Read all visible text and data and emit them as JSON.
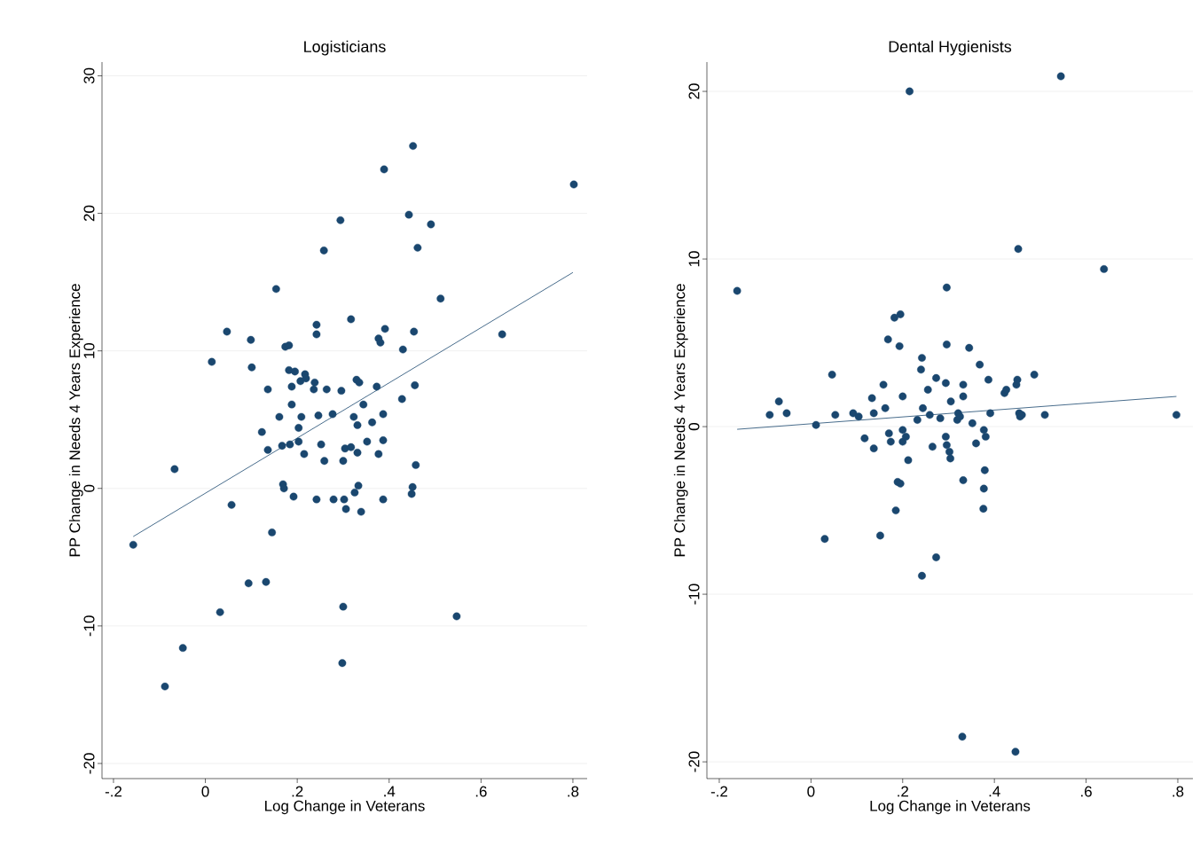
{
  "chart_data": [
    {
      "type": "scatter",
      "title": "Logisticians",
      "xlabel": "Log Change in Veterans",
      "ylabel": "PP Change in Needs 4 Years Experience",
      "xlim": [
        -0.225,
        0.831
      ],
      "ylim": [
        -21.1,
        31.0
      ],
      "xticks": [
        {
          "value": -0.2,
          "label": "-.2"
        },
        0,
        {
          "value": 0.2,
          "label": ".2"
        },
        {
          "value": 0.4,
          "label": ".4"
        },
        {
          "value": 0.6,
          "label": ".6"
        },
        {
          "value": 0.8,
          "label": ".8"
        }
      ],
      "yticks": [
        -20,
        -10,
        0,
        10,
        20,
        30
      ],
      "grid": "y",
      "marker": "circle",
      "series": [
        {
          "color": "#1a476f",
          "x": [
            -0.157,
            -0.088,
            -0.049,
            -0.067,
            0.014,
            0.032,
            0.047,
            0.057,
            0.099,
            0.101,
            0.123,
            0.132,
            0.094,
            0.136,
            0.136,
            0.145,
            0.154,
            0.161,
            0.167,
            0.169,
            0.171,
            0.174,
            0.182,
            0.184,
            0.182,
            0.188,
            0.192,
            0.188,
            0.195,
            0.203,
            0.203,
            0.207,
            0.209,
            0.215,
            0.217,
            0.219,
            0.242,
            0.236,
            0.238,
            0.242,
            0.242,
            0.246,
            0.252,
            0.258,
            0.259,
            0.264,
            0.277,
            0.279,
            0.294,
            0.296,
            0.298,
            0.3,
            0.3,
            0.302,
            0.306,
            0.304,
            0.317,
            0.317,
            0.323,
            0.325,
            0.329,
            0.331,
            0.333,
            0.331,
            0.335,
            0.339,
            0.344,
            0.352,
            0.363,
            0.373,
            0.377,
            0.377,
            0.381,
            0.387,
            0.387,
            0.387,
            0.389,
            0.391,
            0.428,
            0.43,
            0.443,
            0.449,
            0.451,
            0.452,
            0.454,
            0.456,
            0.458,
            0.462,
            0.491,
            0.512,
            0.547,
            0.646,
            0.802
          ],
          "values": [
            -4.1,
            -14.4,
            -11.6,
            1.4,
            9.2,
            -9.0,
            11.4,
            -1.2,
            10.8,
            8.8,
            4.1,
            -6.8,
            -6.9,
            7.2,
            2.8,
            -3.2,
            14.5,
            5.2,
            3.1,
            0.3,
            0.0,
            10.3,
            10.4,
            3.2,
            8.6,
            6.1,
            -0.6,
            7.4,
            8.5,
            4.4,
            3.4,
            7.8,
            5.2,
            2.5,
            8.3,
            8.0,
            -0.8,
            7.2,
            7.7,
            11.2,
            11.9,
            5.3,
            3.2,
            17.3,
            2.0,
            7.2,
            5.4,
            -0.8,
            19.5,
            7.1,
            -12.7,
            -8.6,
            2.0,
            -0.8,
            -1.5,
            2.9,
            12.3,
            3.0,
            5.2,
            -0.3,
            7.9,
            2.6,
            0.2,
            4.6,
            7.7,
            -1.7,
            6.1,
            3.4,
            4.8,
            7.4,
            2.5,
            10.9,
            10.6,
            -0.8,
            3.5,
            5.4,
            23.2,
            11.6,
            6.5,
            10.1,
            19.9,
            -0.4,
            0.1,
            24.9,
            11.4,
            7.5,
            1.7,
            17.5,
            19.2,
            13.8,
            -9.3,
            11.2,
            22.1
          ]
        },
        {
          "type": "line",
          "color": "#1a476f",
          "marker": "none",
          "x": [
            -0.157,
            0.8
          ],
          "values": [
            -3.5,
            15.7
          ]
        }
      ]
    },
    {
      "type": "scatter",
      "title": "Dental Hygienists",
      "xlabel": "Log Change in Veterans",
      "ylabel": "PP Change in Needs 4 Years Experience",
      "xlim": [
        -0.227,
        0.833
      ],
      "ylim": [
        -21.0,
        21.75
      ],
      "xticks": [
        {
          "value": -0.2,
          "label": "-.2"
        },
        0,
        {
          "value": 0.2,
          "label": ".2"
        },
        {
          "value": 0.4,
          "label": ".4"
        },
        {
          "value": 0.6,
          "label": ".6"
        },
        {
          "value": 0.8,
          "label": ".8"
        }
      ],
      "yticks": [
        -20,
        -10,
        0,
        10,
        20
      ],
      "grid": "y",
      "marker": "circle",
      "series": [
        {
          "color": "#1a476f",
          "x": [
            -0.161,
            -0.09,
            -0.07,
            -0.053,
            0.011,
            0.03,
            0.046,
            0.053,
            0.092,
            0.104,
            0.117,
            0.133,
            0.137,
            0.137,
            0.151,
            0.158,
            0.162,
            0.168,
            0.17,
            0.174,
            0.182,
            0.195,
            0.185,
            0.189,
            0.195,
            0.193,
            0.2,
            0.2,
            0.2,
            0.207,
            0.212,
            0.215,
            0.232,
            0.24,
            0.242,
            0.242,
            0.244,
            0.255,
            0.259,
            0.265,
            0.273,
            0.273,
            0.282,
            0.294,
            0.294,
            0.296,
            0.296,
            0.302,
            0.304,
            0.305,
            0.296,
            0.319,
            0.321,
            0.325,
            0.332,
            0.332,
            0.332,
            0.33,
            0.345,
            0.352,
            0.36,
            0.368,
            0.377,
            0.376,
            0.377,
            0.379,
            0.381,
            0.387,
            0.391,
            0.422,
            0.426,
            0.446,
            0.448,
            0.45,
            0.452,
            0.454,
            0.456,
            0.46,
            0.487,
            0.51,
            0.545,
            0.639,
            0.797
          ],
          "values": [
            8.1,
            0.7,
            1.5,
            0.8,
            0.1,
            -6.7,
            3.1,
            0.7,
            0.8,
            0.6,
            -0.7,
            1.7,
            0.8,
            -1.3,
            -6.5,
            2.5,
            1.1,
            5.2,
            -0.4,
            -0.9,
            6.5,
            6.7,
            -5.0,
            -3.3,
            -3.4,
            4.8,
            1.8,
            -0.2,
            -0.9,
            -0.6,
            -2.0,
            20.0,
            0.4,
            3.4,
            4.1,
            -8.9,
            1.1,
            2.2,
            0.7,
            -1.2,
            2.9,
            -7.8,
            0.5,
            2.6,
            -0.6,
            -1.1,
            4.9,
            -1.5,
            -1.9,
            1.5,
            8.3,
            0.4,
            0.8,
            0.6,
            1.8,
            2.5,
            -3.2,
            -18.5,
            4.7,
            0.2,
            -1.0,
            3.7,
            -0.2,
            -4.9,
            -3.7,
            -2.6,
            -0.6,
            2.8,
            0.8,
            2.0,
            2.2,
            -19.4,
            2.5,
            2.8,
            10.6,
            0.8,
            0.6,
            0.7,
            3.1,
            0.7,
            20.9,
            9.4,
            0.7
          ]
        },
        {
          "type": "line",
          "color": "#1a476f",
          "marker": "none",
          "x": [
            -0.161,
            0.797
          ],
          "values": [
            -0.16,
            1.8
          ]
        }
      ]
    }
  ]
}
